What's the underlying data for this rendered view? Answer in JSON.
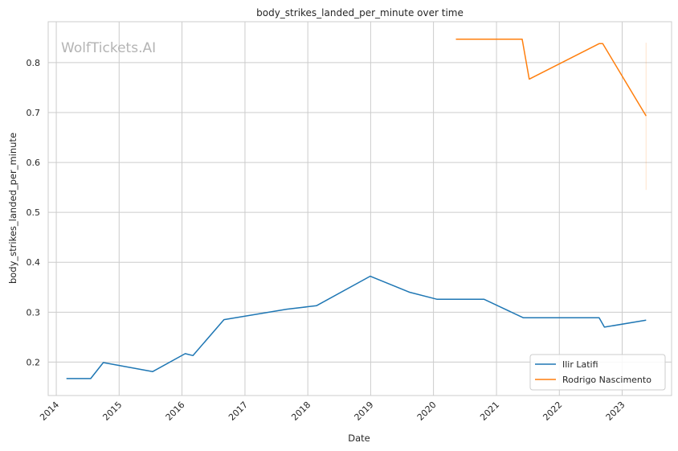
{
  "chart_data": {
    "type": "line",
    "title": "body_strikes_landed_per_minute over time",
    "xlabel": "Date",
    "ylabel": "body_strikes_landed_per_minute",
    "watermark": "WolfTickets.AI",
    "x_ticks": [
      "2014",
      "2015",
      "2016",
      "2017",
      "2018",
      "2019",
      "2020",
      "2021",
      "2022",
      "2023"
    ],
    "y_ticks": [
      "0.2",
      "0.3",
      "0.4",
      "0.5",
      "0.6",
      "0.7",
      "0.8"
    ],
    "xlim": [
      "2013-11-15",
      "2023-10-15"
    ],
    "ylim": [
      0.133,
      0.882
    ],
    "grid": true,
    "legend_position": "lower-right",
    "series": [
      {
        "name": "Ilir Latifi",
        "color": "#1f77b4",
        "points": [
          {
            "x": "2014-03-01",
            "y": 0.167
          },
          {
            "x": "2014-07-20",
            "y": 0.167
          },
          {
            "x": "2014-10-01",
            "y": 0.199
          },
          {
            "x": "2015-07-15",
            "y": 0.181
          },
          {
            "x": "2016-01-20",
            "y": 0.217
          },
          {
            "x": "2016-03-05",
            "y": 0.213
          },
          {
            "x": "2016-09-01",
            "y": 0.285
          },
          {
            "x": "2017-09-01",
            "y": 0.306
          },
          {
            "x": "2018-02-20",
            "y": 0.313
          },
          {
            "x": "2018-12-29",
            "y": 0.372
          },
          {
            "x": "2019-08-15",
            "y": 0.34
          },
          {
            "x": "2020-01-20",
            "y": 0.326
          },
          {
            "x": "2020-10-20",
            "y": 0.326
          },
          {
            "x": "2021-06-05",
            "y": 0.289
          },
          {
            "x": "2022-08-20",
            "y": 0.289
          },
          {
            "x": "2022-09-20",
            "y": 0.27
          },
          {
            "x": "2023-05-20",
            "y": 0.284
          }
        ]
      },
      {
        "name": "Rodrigo Nascimento",
        "color": "#ff7f0e",
        "points": [
          {
            "x": "2020-05-10",
            "y": 0.847
          },
          {
            "x": "2021-05-30",
            "y": 0.847
          },
          {
            "x": "2021-07-10",
            "y": 0.767
          },
          {
            "x": "2022-08-20",
            "y": 0.838
          },
          {
            "x": "2022-09-10",
            "y": 0.838
          },
          {
            "x": "2023-05-20",
            "y": 0.693
          }
        ],
        "band": {
          "x": "2023-05-20",
          "y_low": 0.545,
          "y_high": 0.84
        }
      }
    ]
  }
}
